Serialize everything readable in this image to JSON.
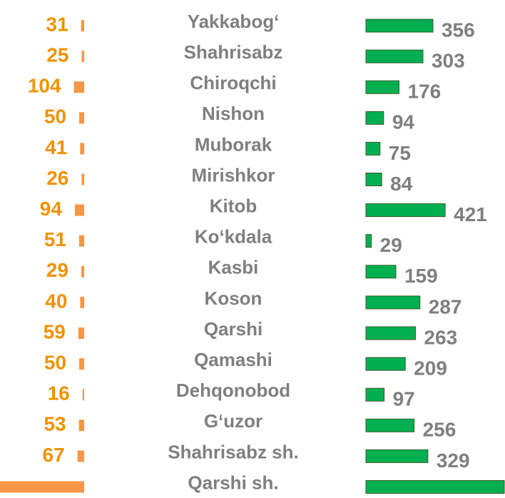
{
  "chart_data": {
    "type": "bar",
    "categories": [
      "Yakkabog‘",
      "Shahrisabz",
      "Chiroqchi",
      "Nishon",
      "Muborak",
      "Mirishkor",
      "Kitob",
      "Ko‘kdala",
      "Kasbi",
      "Koson",
      "Qarshi",
      "Qamashi",
      "Dehqonobod",
      "G‘uzor",
      "Shahrisabz sh.",
      "Qarshi sh."
    ],
    "series": [
      {
        "color": "#f79646",
        "label_color": "#f29100",
        "values": [
          31,
          25,
          104,
          50,
          41,
          26,
          94,
          51,
          29,
          40,
          59,
          50,
          16,
          53,
          67,
          850
        ],
        "value_labels": [
          "31",
          "25",
          "104",
          "50",
          "41",
          "26",
          "94",
          "51",
          "29",
          "40",
          "59",
          "50",
          "16",
          "53",
          "67",
          null
        ]
      },
      {
        "color": "#00b050",
        "label_color": "#7f7f7f",
        "values": [
          356,
          303,
          176,
          94,
          75,
          84,
          421,
          29,
          159,
          287,
          263,
          209,
          97,
          256,
          329,
          740
        ],
        "value_labels": [
          "356",
          "303",
          "176",
          "94",
          "75",
          "84",
          "421",
          "29",
          "159",
          "287",
          "263",
          "209",
          "97",
          "256",
          "329",
          null
        ]
      }
    ]
  }
}
